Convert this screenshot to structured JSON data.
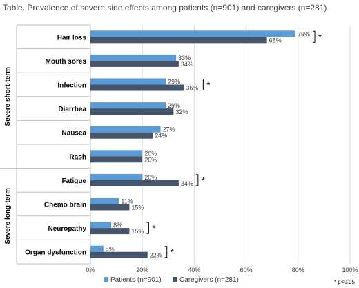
{
  "title": "Table. Prevalence of severe side effects among patients (n=901) and caregivers (n=281)",
  "footnote": "* p<0.05",
  "chart_data": {
    "type": "bar",
    "orientation": "horizontal",
    "title": "Table. Prevalence of severe side effects among patients (n=901) and caregivers (n=281)",
    "categories": [
      "Hair loss",
      "Mouth sores",
      "Infection",
      "Diarrhea",
      "Nausea",
      "Rash",
      "Fatigue",
      "Chemo brain",
      "Neuropathy",
      "Organ dysfunction"
    ],
    "groups": [
      {
        "label": "Severe short-term",
        "categories": [
          "Hair loss",
          "Mouth sores",
          "Infection",
          "Diarrhea",
          "Nausea",
          "Rash"
        ]
      },
      {
        "label": "Severe long-term",
        "categories": [
          "Fatigue",
          "Chemo brain",
          "Neuropathy",
          "Organ dysfunction"
        ]
      }
    ],
    "series": [
      {
        "name": "Patients (n=901)",
        "color": "#5b9bd5",
        "values": [
          79,
          33,
          29,
          29,
          27,
          20,
          20,
          11,
          8,
          5
        ]
      },
      {
        "name": "Caregivers (n=281)",
        "color": "#44546a",
        "values": [
          68,
          34,
          36,
          32,
          24,
          20,
          34,
          15,
          15,
          22
        ]
      }
    ],
    "value_suffix": "%",
    "significant": [
      true,
      false,
      true,
      false,
      false,
      false,
      true,
      false,
      true,
      true
    ],
    "significance_marker": "*",
    "xlim": [
      0,
      100
    ],
    "xticks": [
      "0%",
      "20%",
      "40%",
      "60%",
      "80%",
      "100%"
    ],
    "grid": true,
    "legend_position": "bottom"
  }
}
